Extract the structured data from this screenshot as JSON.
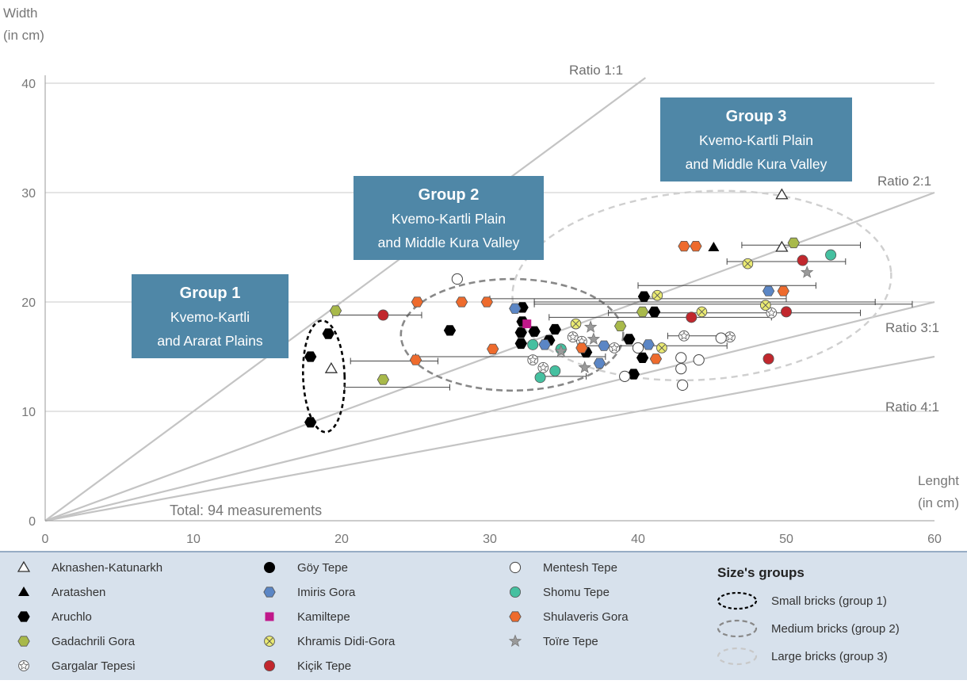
{
  "chart_data": {
    "type": "scatter",
    "title": "",
    "xlabel": "Lenght\n(in cm)",
    "ylabel": "Width\n(in cm)",
    "xlim": [
      0,
      60
    ],
    "ylim": [
      0,
      40
    ],
    "xticks": [
      0,
      10,
      20,
      30,
      40,
      50,
      60
    ],
    "yticks": [
      0,
      10,
      20,
      30,
      40
    ],
    "grid": "horizontal",
    "legend_position": "bottom",
    "annotation_total": "Total: 94 measurements",
    "ratio_lines": [
      {
        "label": "Ratio 1:1",
        "slope": 1
      },
      {
        "label": "Ratio 2:1",
        "slope": 0.5
      },
      {
        "label": "Ratio 3:1",
        "slope": 0.3333
      },
      {
        "label": "Ratio 4:1",
        "slope": 0.25
      }
    ],
    "groups": [
      {
        "title": "Group 1",
        "line1": "Kvemo-Kartli",
        "line2": "and Ararat Plains",
        "ellipse": {
          "cx": 18.8,
          "cy": 13.2,
          "rx": 1.4,
          "ry": 5.1,
          "angle": 2
        }
      },
      {
        "title": "Group 2",
        "line1": "Kvemo-Kartli Plain",
        "line2": "and Middle Kura Valley",
        "ellipse": {
          "cx": 31.5,
          "cy": 17,
          "rx": 7.5,
          "ry": 5.1,
          "angle": 0
        }
      },
      {
        "title": "Group 3",
        "line1": "Kvemo-Kartli Plain",
        "line2": "and Middle Kura Valley",
        "ellipse": {
          "cx": 44.3,
          "cy": 21.5,
          "rx": 12.8,
          "ry": 8.6,
          "angle": 4
        }
      }
    ],
    "series": [
      {
        "name": "Aknashen-Katunarkh",
        "marker": "triangle-open",
        "color": "#ffffff",
        "points": [
          {
            "x": 19.3,
            "y": 13.9
          },
          {
            "x": 49.7,
            "y": 25
          },
          {
            "x": 49.7,
            "y": 29.8
          }
        ]
      },
      {
        "name": "Aratashen",
        "marker": "triangle-filled",
        "color": "#000000",
        "points": [
          {
            "x": 45.1,
            "y": 25
          }
        ]
      },
      {
        "name": "Aruchlo",
        "marker": "hexagon",
        "color": "#000000",
        "points": [
          {
            "x": 17.9,
            "y": 9
          },
          {
            "x": 17.9,
            "y": 15
          },
          {
            "x": 19.1,
            "y": 17.1
          },
          {
            "x": 27.3,
            "y": 17.4
          },
          {
            "x": 32.2,
            "y": 19.5
          },
          {
            "x": 32.2,
            "y": 18.2
          },
          {
            "x": 32.1,
            "y": 17.2
          },
          {
            "x": 32.1,
            "y": 16.2
          },
          {
            "x": 33,
            "y": 17.3
          },
          {
            "x": 34,
            "y": 16.5
          },
          {
            "x": 34.4,
            "y": 17.5
          },
          {
            "x": 36.5,
            "y": 15.4
          },
          {
            "x": 39.4,
            "y": 16.6
          },
          {
            "x": 39.7,
            "y": 13.4
          },
          {
            "x": 40.3,
            "y": 14.9
          },
          {
            "x": 40.4,
            "y": 20.5
          },
          {
            "x": 41.1,
            "y": 19.1
          }
        ]
      },
      {
        "name": "Gadachrili Gora",
        "marker": "hexagon",
        "color": "#a8b94a",
        "points": [
          {
            "x": 19.6,
            "y": 19.2
          },
          {
            "x": 22.8,
            "y": 12.9
          },
          {
            "x": 38.8,
            "y": 17.8
          },
          {
            "x": 40.3,
            "y": 19.1
          },
          {
            "x": 50.5,
            "y": 25.4
          }
        ]
      },
      {
        "name": "Gargalar Tepesi",
        "marker": "circle-star",
        "color": "#ffffff",
        "points": [
          {
            "x": 32.9,
            "y": 14.7
          },
          {
            "x": 33.6,
            "y": 14
          },
          {
            "x": 35.6,
            "y": 16.8
          },
          {
            "x": 36.2,
            "y": 16.4
          },
          {
            "x": 38.4,
            "y": 15.8
          },
          {
            "x": 43.1,
            "y": 16.9
          },
          {
            "x": 46.2,
            "y": 16.8
          },
          {
            "x": 49,
            "y": 19
          }
        ]
      },
      {
        "name": "Göy Tepe",
        "marker": "circle",
        "color": "#000000",
        "points": []
      },
      {
        "name": "Imiris Gora",
        "marker": "hexagon",
        "color": "#5b86c5",
        "points": [
          {
            "x": 31.7,
            "y": 19.4
          },
          {
            "x": 33.7,
            "y": 16.1
          },
          {
            "x": 37.7,
            "y": 16
          },
          {
            "x": 37.4,
            "y": 14.4
          },
          {
            "x": 40.7,
            "y": 16.1
          },
          {
            "x": 48.8,
            "y": 21
          }
        ]
      },
      {
        "name": "Kamiltepe",
        "marker": "square",
        "color": "#c0188a",
        "points": [
          {
            "x": 32.5,
            "y": 18
          }
        ]
      },
      {
        "name": "Khramis Didi-Gora",
        "marker": "circle-x",
        "color": "#eaea72",
        "points": [
          {
            "x": 35.8,
            "y": 18
          },
          {
            "x": 41.3,
            "y": 20.6
          },
          {
            "x": 41.6,
            "y": 15.8
          },
          {
            "x": 44.3,
            "y": 19.1
          },
          {
            "x": 47.4,
            "y": 23.5
          },
          {
            "x": 48.6,
            "y": 19.7
          }
        ]
      },
      {
        "name": "Kiçik Tepe",
        "marker": "circle",
        "color": "#c1272d",
        "points": [
          {
            "x": 22.8,
            "y": 18.8
          },
          {
            "x": 43.6,
            "y": 18.6
          },
          {
            "x": 48.8,
            "y": 14.8
          },
          {
            "x": 50,
            "y": 19.1
          },
          {
            "x": 51.1,
            "y": 23.8
          }
        ]
      },
      {
        "name": "Mentesh Tepe",
        "marker": "circle-open",
        "color": "#ffffff",
        "points": [
          {
            "x": 27.8,
            "y": 22.1
          },
          {
            "x": 39.1,
            "y": 13.2
          },
          {
            "x": 42.9,
            "y": 14.9
          },
          {
            "x": 42.9,
            "y": 13.9
          },
          {
            "x": 43,
            "y": 12.4
          },
          {
            "x": 44.1,
            "y": 14.7
          },
          {
            "x": 45.6,
            "y": 16.7
          },
          {
            "x": 40,
            "y": 15.8
          }
        ]
      },
      {
        "name": "Shomu Tepe",
        "marker": "circle",
        "color": "#45c0a0",
        "points": [
          {
            "x": 32.9,
            "y": 16.1
          },
          {
            "x": 33.4,
            "y": 13.1
          },
          {
            "x": 34.4,
            "y": 13.7
          },
          {
            "x": 34.8,
            "y": 15.7
          },
          {
            "x": 53,
            "y": 24.3
          }
        ]
      },
      {
        "name": "Shulaveris Gora",
        "marker": "hexagon",
        "color": "#ee6b2d",
        "points": [
          {
            "x": 25,
            "y": 14.7
          },
          {
            "x": 25.1,
            "y": 20
          },
          {
            "x": 28.1,
            "y": 20
          },
          {
            "x": 29.8,
            "y": 20
          },
          {
            "x": 30.2,
            "y": 15.7
          },
          {
            "x": 36.2,
            "y": 15.8
          },
          {
            "x": 41.2,
            "y": 14.8
          },
          {
            "x": 43.1,
            "y": 25.1
          },
          {
            "x": 43.9,
            "y": 25.1
          },
          {
            "x": 49.8,
            "y": 21
          }
        ]
      },
      {
        "name": "Toïre Tepe",
        "marker": "star",
        "color": "#9a9a9a",
        "points": [
          {
            "x": 34.8,
            "y": 15.5
          },
          {
            "x": 36.4,
            "y": 14
          },
          {
            "x": 36.8,
            "y": 17.7
          },
          {
            "x": 37,
            "y": 16.6
          },
          {
            "x": 51.4,
            "y": 22.7
          }
        ]
      }
    ],
    "range_bars": [
      {
        "x1": 19.4,
        "x2": 25.4,
        "y": 18.8
      },
      {
        "x1": 20.6,
        "x2": 26.5,
        "y": 14.6
      },
      {
        "x1": 20.2,
        "x2": 27.3,
        "y": 12.2
      },
      {
        "x1": 25,
        "x2": 37.8,
        "y": 15
      },
      {
        "x1": 30,
        "x2": 50,
        "y": 20.3
      },
      {
        "x1": 33,
        "x2": 56,
        "y": 20
      },
      {
        "x1": 33,
        "x2": 58.5,
        "y": 19.8
      },
      {
        "x1": 34,
        "x2": 49,
        "y": 18.6
      },
      {
        "x1": 36,
        "x2": 46,
        "y": 16
      },
      {
        "x1": 33.3,
        "x2": 36.5,
        "y": 13.2
      },
      {
        "x1": 38,
        "x2": 55,
        "y": 19
      },
      {
        "x1": 40,
        "x2": 52,
        "y": 21.5
      },
      {
        "x1": 46,
        "x2": 54,
        "y": 23.7
      },
      {
        "x1": 47,
        "x2": 55,
        "y": 25.2
      },
      {
        "x1": 42,
        "x2": 46,
        "y": 16.9
      }
    ]
  },
  "legend": {
    "site_columns": [
      [
        {
          "label": "Aknashen-Katunarkh",
          "marker": "triangle-open",
          "color": "#ffffff"
        },
        {
          "label": "Aratashen",
          "marker": "triangle-filled",
          "color": "#000000"
        },
        {
          "label": "Aruchlo",
          "marker": "hexagon",
          "color": "#000000"
        },
        {
          "label": "Gadachrili Gora",
          "marker": "hexagon",
          "color": "#a8b94a"
        },
        {
          "label": "Gargalar Tepesi",
          "marker": "circle-star",
          "color": "#ffffff"
        }
      ],
      [
        {
          "label": "Göy Tepe",
          "marker": "circle",
          "color": "#000000"
        },
        {
          "label": "Imiris Gora",
          "marker": "hexagon",
          "color": "#5b86c5"
        },
        {
          "label": "Kamiltepe",
          "marker": "square",
          "color": "#c0188a"
        },
        {
          "label": "Khramis Didi-Gora",
          "marker": "circle-x",
          "color": "#eaea72"
        },
        {
          "label": "Kiçik Tepe",
          "marker": "circle",
          "color": "#c1272d"
        }
      ],
      [
        {
          "label": "Mentesh Tepe",
          "marker": "circle-open",
          "color": "#ffffff"
        },
        {
          "label": "Shomu Tepe",
          "marker": "circle",
          "color": "#45c0a0"
        },
        {
          "label": "Shulaveris Gora",
          "marker": "hexagon",
          "color": "#ee6b2d"
        },
        {
          "label": "Toïre Tepe",
          "marker": "star",
          "color": "#9a9a9a"
        }
      ]
    ],
    "size_groups_heading": "Size's groups",
    "size_groups": [
      {
        "label": "Small bricks (group 1)",
        "stroke": "#000000"
      },
      {
        "label": "Medium bricks (group 2)",
        "stroke": "#888888"
      },
      {
        "label": "Large bricks (group 3)",
        "stroke": "#c8c8c8"
      }
    ],
    "background": "#d7e1ec"
  }
}
